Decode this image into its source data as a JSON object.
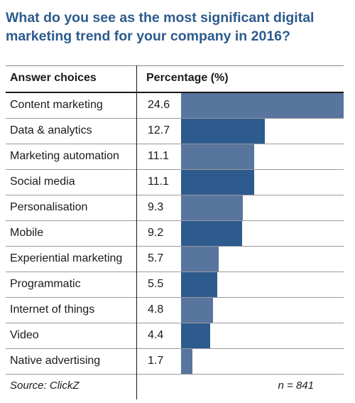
{
  "title": "What do you see as the most significant digital marketing trend for your company in 2016?",
  "header": {
    "col1": "Answer choices",
    "col2": "Percentage (%)"
  },
  "chart_data": {
    "type": "bar",
    "categories": [
      "Content marketing",
      "Data & analytics",
      "Marketing automation",
      "Social media",
      "Personalisation",
      "Mobile",
      "Experiential marketing",
      "Programmatic",
      "Internet of things",
      "Video",
      "Native advertising"
    ],
    "values": [
      24.6,
      12.7,
      11.1,
      11.1,
      9.3,
      9.2,
      5.7,
      5.5,
      4.8,
      4.4,
      1.7
    ],
    "value_labels": [
      "24.6",
      "12.7",
      "11.1",
      "11.1",
      "9.3",
      "9.2",
      "5.7",
      "5.5",
      "4.8",
      "4.4",
      "1.7"
    ],
    "xlim": [
      0,
      24.6
    ],
    "colors": [
      "#58759e",
      "#2d5b8e"
    ]
  },
  "footer": {
    "source": "Source: ClickZ",
    "n": "n = 841"
  }
}
